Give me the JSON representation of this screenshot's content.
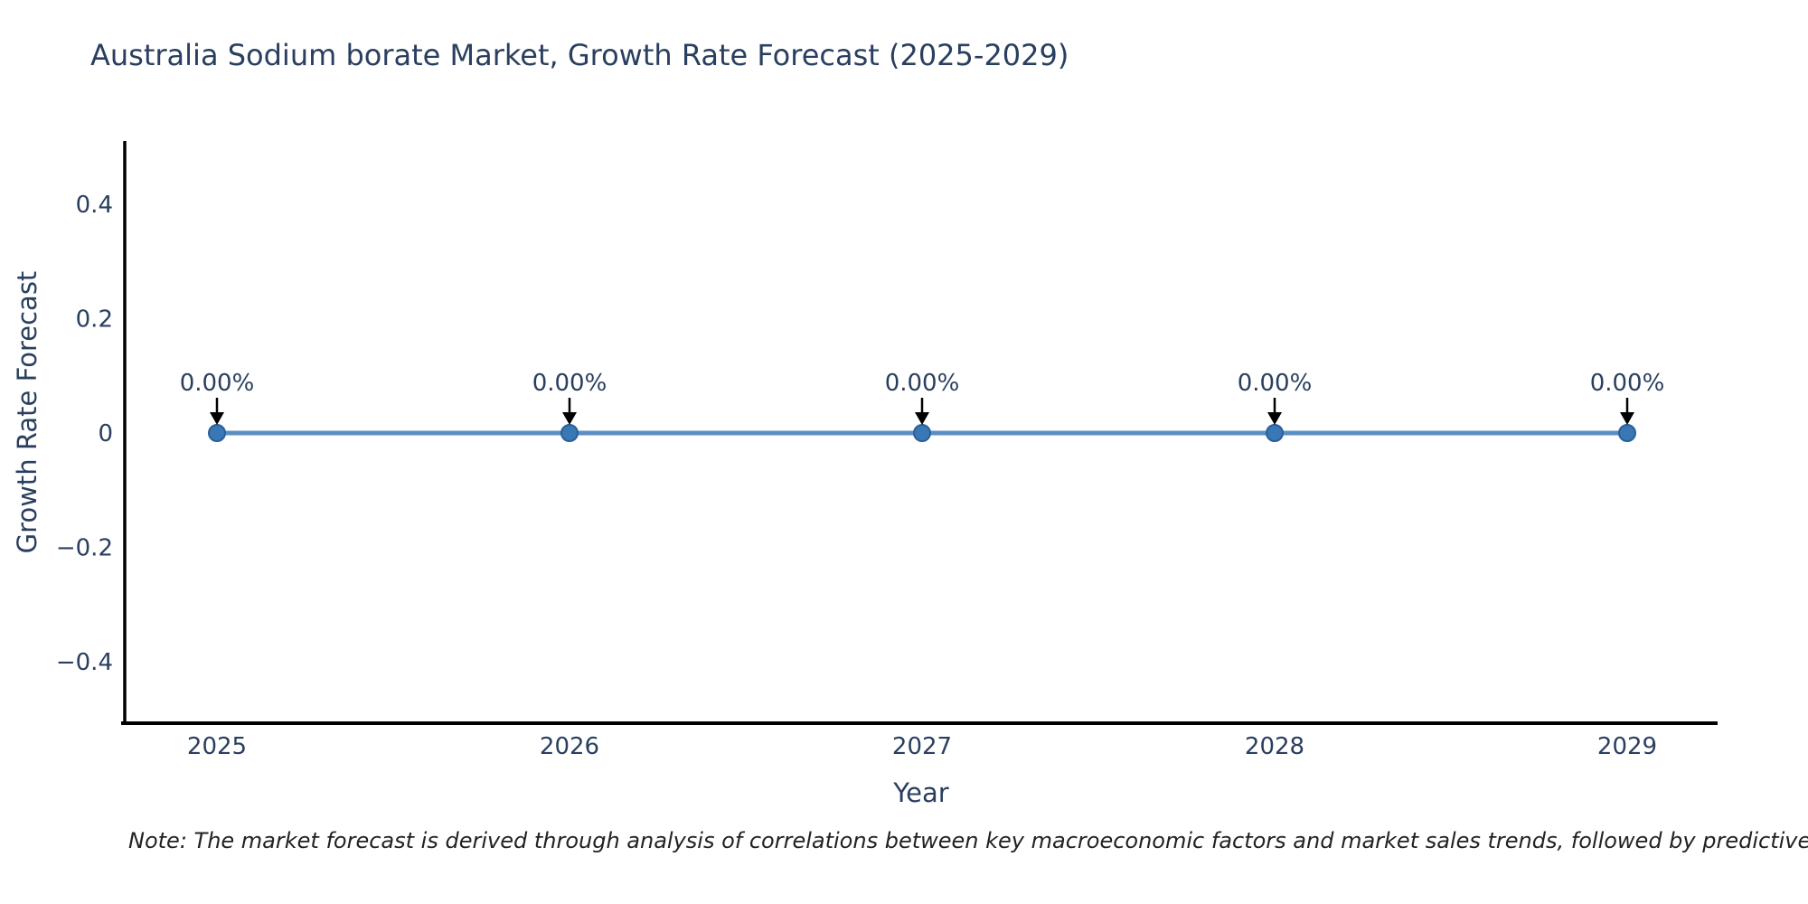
{
  "note": "Note: The market forecast is derived through analysis of correlations between key macroeconomic factors and market sales trends, followed by predictive modeling to project future sales.",
  "chart_data": {
    "type": "line",
    "title": "Australia Sodium borate Market, Growth Rate Forecast (2025-2029)",
    "xlabel": "Year",
    "ylabel": "Growth Rate Forecast",
    "categories": [
      "2025",
      "2026",
      "2027",
      "2028",
      "2029"
    ],
    "values": [
      0,
      0,
      0,
      0,
      0
    ],
    "point_labels": [
      "0.00%",
      "0.00%",
      "0.00%",
      "0.00%",
      "0.00%"
    ],
    "ylim": [
      -0.508,
      0.508
    ],
    "yticks": [
      0.4,
      0.2,
      0,
      -0.2,
      -0.4
    ],
    "ytick_labels": [
      "0.4",
      "0.2",
      "0",
      "−0.2",
      "−0.4"
    ],
    "grid": false,
    "legend_position": "none",
    "marker_style": "circle-with-down-arrow-annotation",
    "colors": {
      "line": "#5b8fc4",
      "marker": "#3a78b5",
      "marker_edge": "#2a6099",
      "arrow": "#000000",
      "axis": "#000000",
      "text": "#2a3f5f",
      "note": "#222222"
    }
  }
}
